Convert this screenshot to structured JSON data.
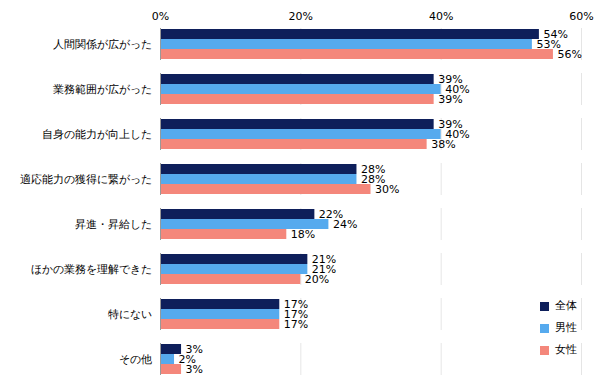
{
  "chart_data": {
    "type": "bar",
    "orientation": "horizontal",
    "categories": [
      "人間関係が広がった",
      "業務範囲が広がった",
      "自身の能力が向上した",
      "適応能力の獲得に繋がった",
      "昇進・昇給した",
      "ほかの業務を理解できた",
      "特にない",
      "その他"
    ],
    "series": [
      {
        "name": "全体",
        "color": "#0e1f5b",
        "values": [
          54,
          39,
          39,
          28,
          22,
          21,
          17,
          3
        ],
        "value_labels": [
          "54%",
          "39%",
          "39%",
          "28%",
          "22%",
          "21%",
          "17%",
          "3%"
        ]
      },
      {
        "name": "男性",
        "color": "#56aaee",
        "values": [
          53,
          40,
          40,
          28,
          24,
          21,
          17,
          2
        ],
        "value_labels": [
          "53%",
          "40%",
          "40%",
          "28%",
          "24%",
          "21%",
          "17%",
          "2%"
        ]
      },
      {
        "name": "女性",
        "color": "#f4877b",
        "values": [
          56,
          39,
          38,
          30,
          18,
          20,
          17,
          3
        ],
        "value_labels": [
          "56%",
          "39%",
          "38%",
          "30%",
          "18%",
          "20%",
          "17%",
          "3%"
        ]
      }
    ],
    "xlim": [
      0,
      60
    ],
    "xticks": [
      {
        "value": 0,
        "label": "0%"
      },
      {
        "value": 20,
        "label": "20%"
      },
      {
        "value": 40,
        "label": "40%"
      },
      {
        "value": 60,
        "label": "60%"
      }
    ],
    "grid": true,
    "data_labels": true,
    "legend": "lower right"
  }
}
